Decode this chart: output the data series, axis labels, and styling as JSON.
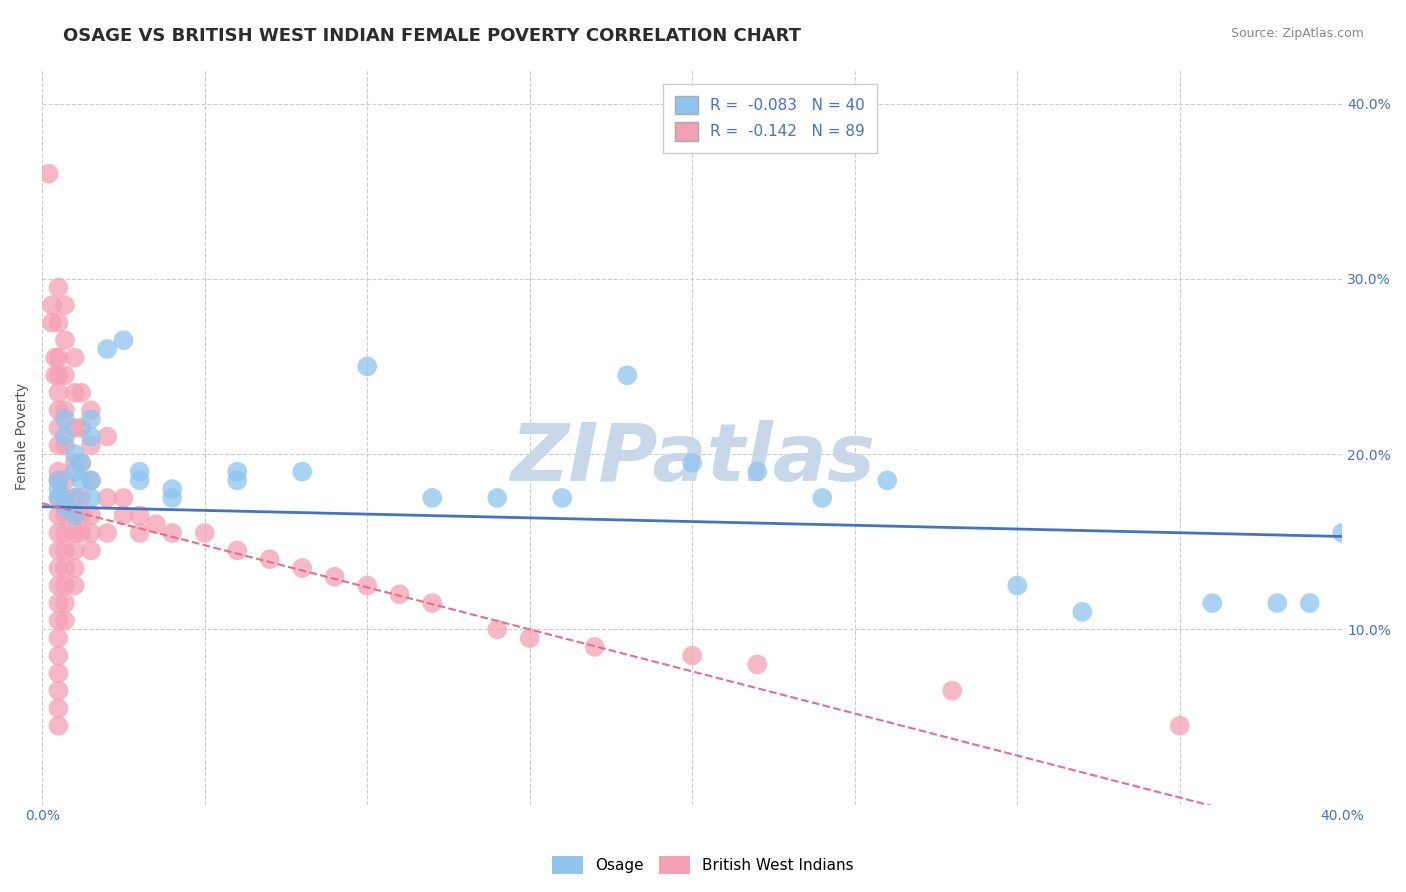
{
  "title": "OSAGE VS BRITISH WEST INDIAN FEMALE POVERTY CORRELATION CHART",
  "source": "Source: ZipAtlas.com",
  "ylabel": "Female Poverty",
  "xlim": [
    0.0,
    0.4
  ],
  "ylim": [
    0.0,
    0.42
  ],
  "xticks": [
    0.0,
    0.05,
    0.1,
    0.15,
    0.2,
    0.25,
    0.3,
    0.35,
    0.4
  ],
  "yticks_right": [
    0.1,
    0.2,
    0.3,
    0.4
  ],
  "ytick_right_labels": [
    "10.0%",
    "20.0%",
    "30.0%",
    "40.0%"
  ],
  "osage_R": -0.083,
  "osage_N": 40,
  "bwi_R": -0.142,
  "bwi_N": 89,
  "osage_color": "#8EC4ED",
  "bwi_color": "#F4A0B4",
  "osage_trend_color": "#4472C4",
  "bwi_trend_color": "#E07090",
  "osage_scatter": [
    [
      0.005,
      0.175
    ],
    [
      0.005,
      0.18
    ],
    [
      0.005,
      0.185
    ],
    [
      0.007,
      0.21
    ],
    [
      0.007,
      0.22
    ],
    [
      0.007,
      0.17
    ],
    [
      0.01,
      0.19
    ],
    [
      0.01,
      0.2
    ],
    [
      0.01,
      0.175
    ],
    [
      0.01,
      0.165
    ],
    [
      0.012,
      0.195
    ],
    [
      0.012,
      0.185
    ],
    [
      0.015,
      0.21
    ],
    [
      0.015,
      0.22
    ],
    [
      0.015,
      0.175
    ],
    [
      0.015,
      0.185
    ],
    [
      0.02,
      0.26
    ],
    [
      0.025,
      0.265
    ],
    [
      0.03,
      0.19
    ],
    [
      0.03,
      0.185
    ],
    [
      0.04,
      0.175
    ],
    [
      0.04,
      0.18
    ],
    [
      0.06,
      0.19
    ],
    [
      0.06,
      0.185
    ],
    [
      0.08,
      0.19
    ],
    [
      0.1,
      0.25
    ],
    [
      0.12,
      0.175
    ],
    [
      0.14,
      0.175
    ],
    [
      0.16,
      0.175
    ],
    [
      0.18,
      0.245
    ],
    [
      0.2,
      0.195
    ],
    [
      0.22,
      0.19
    ],
    [
      0.24,
      0.175
    ],
    [
      0.26,
      0.185
    ],
    [
      0.3,
      0.125
    ],
    [
      0.32,
      0.11
    ],
    [
      0.36,
      0.115
    ],
    [
      0.38,
      0.115
    ],
    [
      0.39,
      0.115
    ],
    [
      0.4,
      0.155
    ]
  ],
  "bwi_scatter": [
    [
      0.002,
      0.36
    ],
    [
      0.003,
      0.285
    ],
    [
      0.003,
      0.275
    ],
    [
      0.004,
      0.255
    ],
    [
      0.004,
      0.245
    ],
    [
      0.005,
      0.295
    ],
    [
      0.005,
      0.275
    ],
    [
      0.005,
      0.255
    ],
    [
      0.005,
      0.245
    ],
    [
      0.005,
      0.235
    ],
    [
      0.005,
      0.225
    ],
    [
      0.005,
      0.215
    ],
    [
      0.005,
      0.205
    ],
    [
      0.005,
      0.19
    ],
    [
      0.005,
      0.185
    ],
    [
      0.005,
      0.175
    ],
    [
      0.005,
      0.165
    ],
    [
      0.005,
      0.155
    ],
    [
      0.005,
      0.145
    ],
    [
      0.005,
      0.135
    ],
    [
      0.005,
      0.125
    ],
    [
      0.005,
      0.115
    ],
    [
      0.005,
      0.105
    ],
    [
      0.005,
      0.095
    ],
    [
      0.005,
      0.085
    ],
    [
      0.005,
      0.075
    ],
    [
      0.005,
      0.065
    ],
    [
      0.005,
      0.055
    ],
    [
      0.005,
      0.045
    ],
    [
      0.007,
      0.285
    ],
    [
      0.007,
      0.265
    ],
    [
      0.007,
      0.245
    ],
    [
      0.007,
      0.225
    ],
    [
      0.007,
      0.205
    ],
    [
      0.007,
      0.185
    ],
    [
      0.007,
      0.175
    ],
    [
      0.007,
      0.165
    ],
    [
      0.007,
      0.155
    ],
    [
      0.007,
      0.145
    ],
    [
      0.007,
      0.135
    ],
    [
      0.007,
      0.125
    ],
    [
      0.007,
      0.115
    ],
    [
      0.007,
      0.105
    ],
    [
      0.01,
      0.255
    ],
    [
      0.01,
      0.235
    ],
    [
      0.01,
      0.215
    ],
    [
      0.01,
      0.195
    ],
    [
      0.01,
      0.175
    ],
    [
      0.01,
      0.165
    ],
    [
      0.01,
      0.155
    ],
    [
      0.01,
      0.145
    ],
    [
      0.01,
      0.135
    ],
    [
      0.01,
      0.125
    ],
    [
      0.012,
      0.235
    ],
    [
      0.012,
      0.215
    ],
    [
      0.012,
      0.195
    ],
    [
      0.012,
      0.175
    ],
    [
      0.012,
      0.165
    ],
    [
      0.012,
      0.155
    ],
    [
      0.015,
      0.225
    ],
    [
      0.015,
      0.205
    ],
    [
      0.015,
      0.185
    ],
    [
      0.015,
      0.165
    ],
    [
      0.015,
      0.155
    ],
    [
      0.015,
      0.145
    ],
    [
      0.02,
      0.21
    ],
    [
      0.02,
      0.175
    ],
    [
      0.02,
      0.155
    ],
    [
      0.025,
      0.175
    ],
    [
      0.025,
      0.165
    ],
    [
      0.03,
      0.165
    ],
    [
      0.03,
      0.155
    ],
    [
      0.035,
      0.16
    ],
    [
      0.04,
      0.155
    ],
    [
      0.05,
      0.155
    ],
    [
      0.06,
      0.145
    ],
    [
      0.07,
      0.14
    ],
    [
      0.08,
      0.135
    ],
    [
      0.09,
      0.13
    ],
    [
      0.1,
      0.125
    ],
    [
      0.11,
      0.12
    ],
    [
      0.12,
      0.115
    ],
    [
      0.14,
      0.1
    ],
    [
      0.15,
      0.095
    ],
    [
      0.17,
      0.09
    ],
    [
      0.2,
      0.085
    ],
    [
      0.22,
      0.08
    ],
    [
      0.28,
      0.065
    ],
    [
      0.35,
      0.045
    ]
  ],
  "watermark": "ZIPatlas",
  "watermark_color": "#C8D8E8",
  "background_color": "#FFFFFF",
  "grid_color": "#CCCCCC",
  "title_fontsize": 13,
  "axis_label_fontsize": 10,
  "tick_fontsize": 10,
  "legend_fontsize": 11
}
